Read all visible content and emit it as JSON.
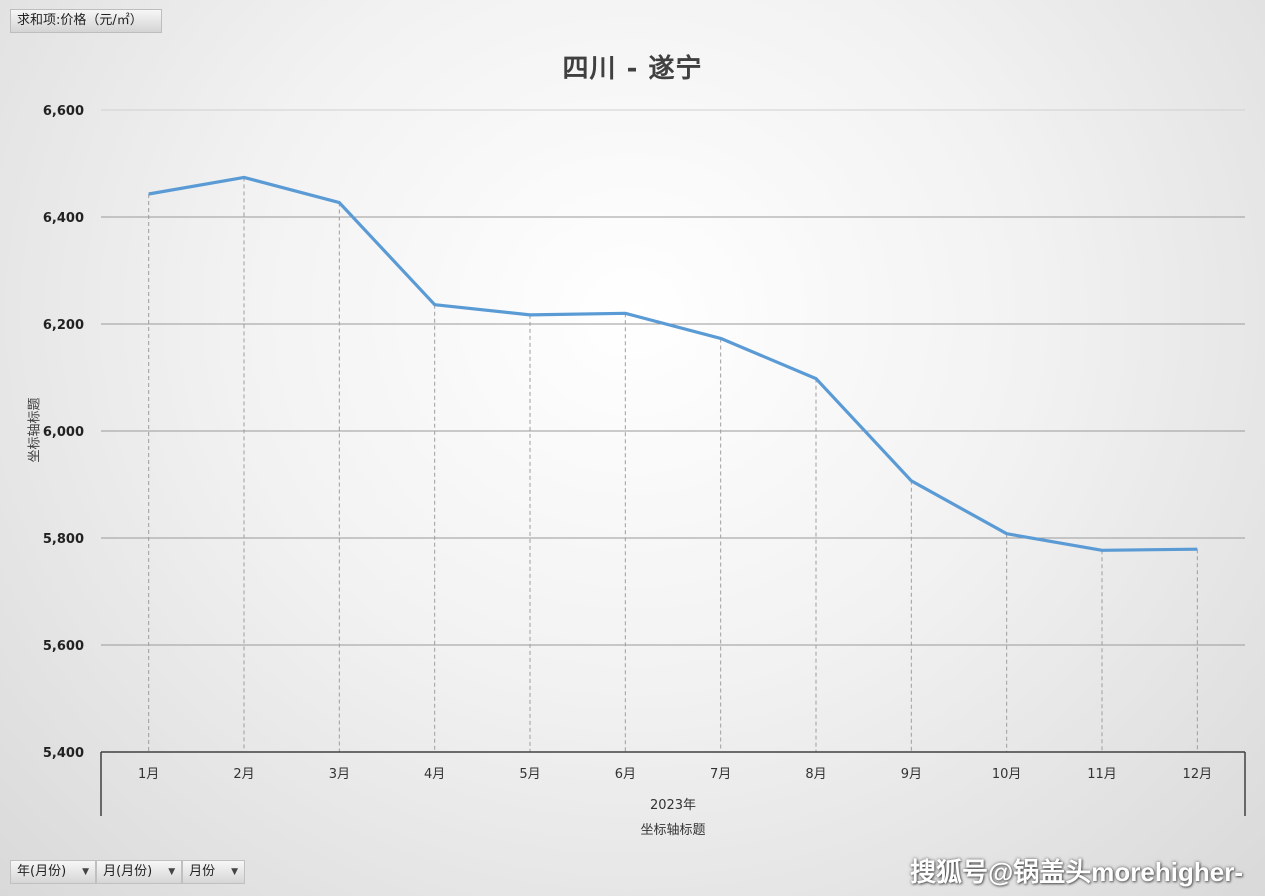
{
  "field_tag": "求和项:价格（元/㎡）",
  "chart_data": {
    "type": "line",
    "title": "四川 - 遂宁",
    "ylabel": "坐标轴标题",
    "xlabel": "坐标轴标题",
    "x_group_label": "2023年",
    "categories": [
      "1月",
      "2月",
      "3月",
      "4月",
      "5月",
      "6月",
      "7月",
      "8月",
      "9月",
      "10月",
      "11月",
      "12月"
    ],
    "series": [
      {
        "values": [
          6443,
          6474,
          6427,
          6236,
          6217,
          6220,
          6173,
          6098,
          5907,
          5808,
          5777,
          5779
        ]
      }
    ],
    "ylim": [
      5400,
      6600
    ],
    "yticks": [
      5400,
      5600,
      5800,
      6000,
      6200,
      6400,
      6600
    ],
    "ytick_labels": [
      "5,400",
      "5,600",
      "5,800",
      "6,000",
      "6,200",
      "6,400",
      "6,600"
    ],
    "grid": true,
    "drop_lines": true,
    "legend": "none",
    "color": "#5b9bd5"
  },
  "bottom_fields": [
    {
      "label": "年(月份)",
      "arrow": "▼"
    },
    {
      "label": "月(月份)",
      "arrow": "▼"
    },
    {
      "label": "月份",
      "arrow": "▼"
    }
  ],
  "watermark": "搜狐号@锅盖头morehigher-"
}
